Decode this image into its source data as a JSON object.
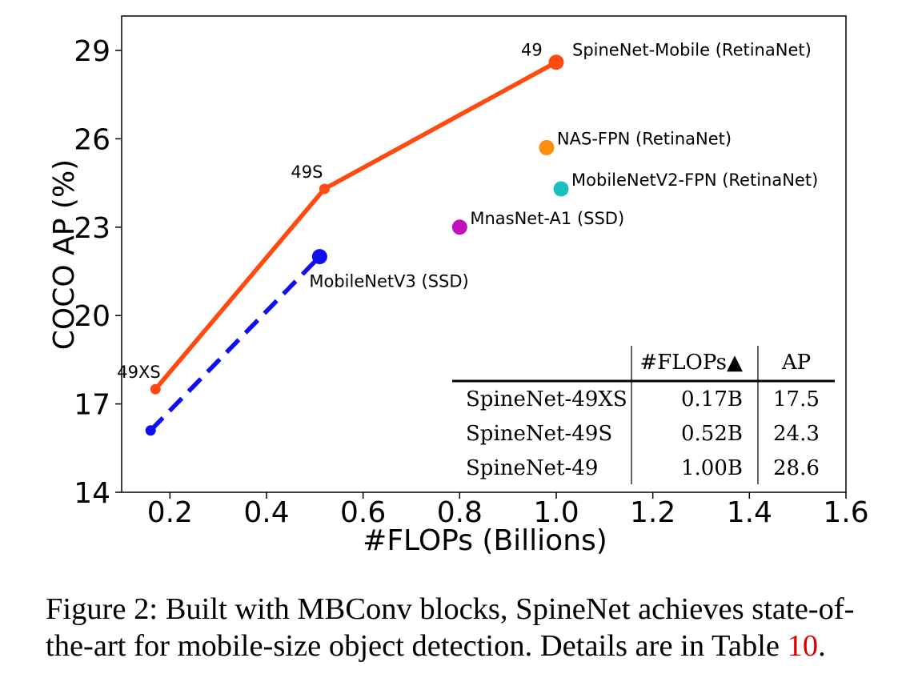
{
  "chart_data": {
    "type": "line",
    "xlabel": "#FLOPs (Billions)",
    "ylabel": "COCO AP (%)",
    "xlim": [
      0.1,
      1.6
    ],
    "ylim": [
      14,
      30
    ],
    "x_ticks": [
      0.2,
      0.4,
      0.6,
      0.8,
      1.0,
      1.2,
      1.4,
      1.6
    ],
    "x_tick_labels": [
      "0.2",
      "0.4",
      "0.6",
      "0.8",
      "1.0",
      "1.2",
      "1.4",
      "1.6"
    ],
    "y_ticks": [
      14,
      17,
      20,
      23,
      26,
      29
    ],
    "y_tick_labels": [
      "14",
      "17",
      "20",
      "23",
      "26",
      "29"
    ],
    "grid": false,
    "series": [
      {
        "name": "SpineNet-Mobile (RetinaNet)",
        "color": "#ff4a11",
        "style": "solid",
        "points": [
          {
            "x": 0.17,
            "y": 17.5,
            "label": "49XS"
          },
          {
            "x": 0.52,
            "y": 24.3,
            "label": "49S"
          },
          {
            "x": 1.0,
            "y": 28.6,
            "label": "49"
          }
        ]
      },
      {
        "name": "MobileNetV3 (SSD)",
        "color": "#1010ee",
        "style": "dashed",
        "points": [
          {
            "x": 0.16,
            "y": 16.1
          },
          {
            "x": 0.51,
            "y": 22.0
          }
        ]
      }
    ],
    "scatter": [
      {
        "name": "NAS-FPN (RetinaNet)",
        "x": 0.98,
        "y": 25.7,
        "color": "#ff8c0a"
      },
      {
        "name": "MobileNetV2-FPN (RetinaNet)",
        "x": 1.01,
        "y": 24.3,
        "color": "#1bbfbf"
      },
      {
        "name": "MnasNet-A1 (SSD)",
        "x": 0.8,
        "y": 23.0,
        "color": "#c010c0"
      }
    ],
    "table": {
      "headers": [
        "",
        "#FLOPs▲",
        "AP"
      ],
      "rows": [
        [
          "SpineNet-49XS",
          "0.17B",
          "17.5"
        ],
        [
          "SpineNet-49S",
          "0.52B",
          "24.3"
        ],
        [
          "SpineNet-49",
          "1.00B",
          "28.6"
        ]
      ]
    }
  },
  "caption": {
    "line1": "Figure 2: Built with MBConv blocks, SpineNet achieves state-of-",
    "line2_prefix": "the-art for mobile-size object detection. Details are in Table ",
    "line2_ref": "10",
    "line2_suffix": "."
  }
}
